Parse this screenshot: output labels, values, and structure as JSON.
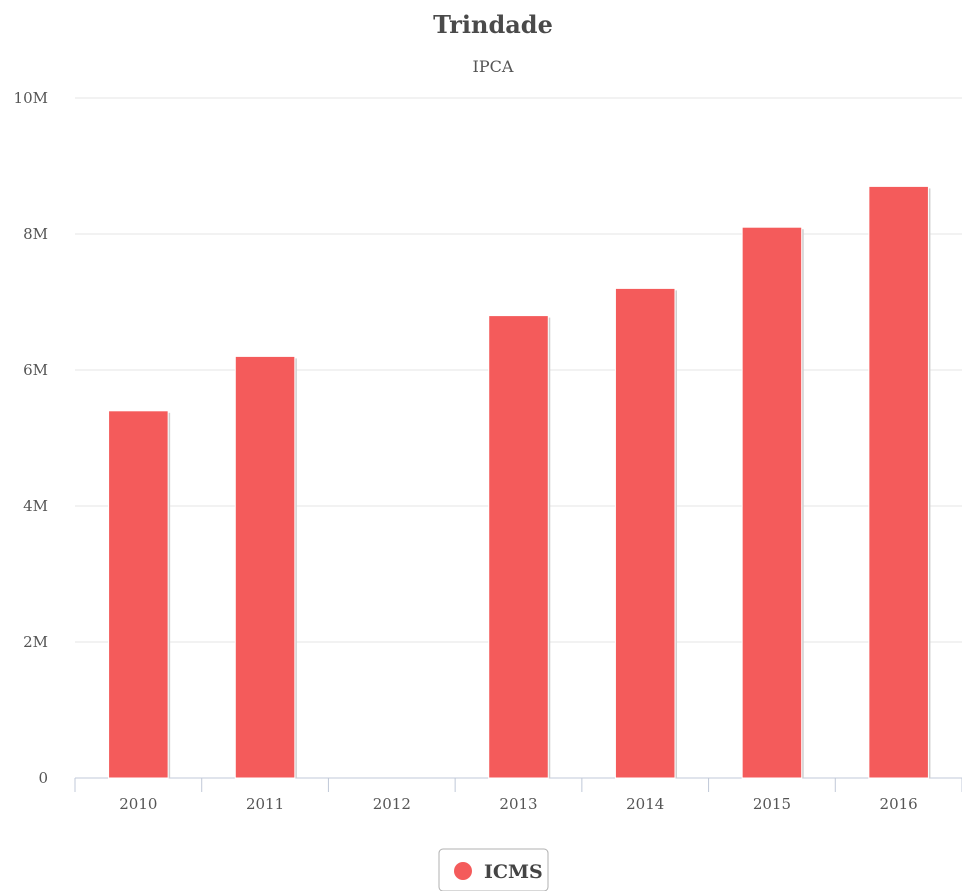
{
  "chart_data": {
    "type": "bar",
    "title": "Trindade",
    "subtitle": "IPCA",
    "categories": [
      "2010",
      "2011",
      "2012",
      "2013",
      "2014",
      "2015",
      "2016"
    ],
    "series": [
      {
        "name": "ICMS",
        "color": "#f45b5b",
        "values": [
          5.4,
          6.2,
          0,
          6.8,
          7.2,
          8.1,
          8.7
        ]
      }
    ],
    "value_unit": "M",
    "ylim": [
      0,
      10
    ],
    "y_ticks": [
      {
        "value": 0,
        "label": "0"
      },
      {
        "value": 2,
        "label": "2M"
      },
      {
        "value": 4,
        "label": "4M"
      },
      {
        "value": 6,
        "label": "6M"
      },
      {
        "value": 8,
        "label": "8M"
      },
      {
        "value": 10,
        "label": "10M"
      }
    ],
    "xlabel": "",
    "ylabel": "",
    "grid": true,
    "legend_position": "bottom-center"
  }
}
